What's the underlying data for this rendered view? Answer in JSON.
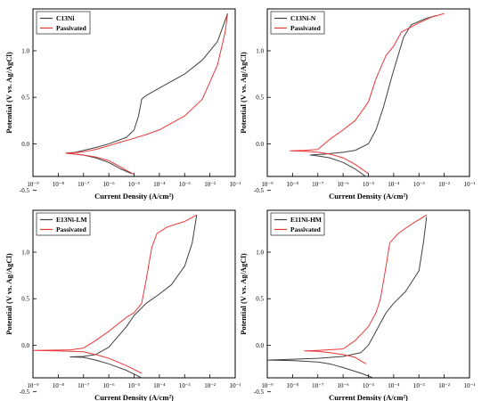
{
  "chart_data": [
    {
      "type": "line",
      "xlabel": "Current Density (A/cm²)",
      "ylabel": "Potential (V vs. Ag/AgCl)",
      "xscale": "log",
      "xlim": [
        1e-09,
        0.1
      ],
      "ylim": [
        -0.35,
        1.45
      ],
      "xticks": [
        "10⁻⁹",
        "10⁻⁸",
        "10⁻⁷",
        "10⁻⁶",
        "10⁻⁵",
        "10⁻⁴",
        "10⁻³",
        "10⁻²",
        "10⁻¹"
      ],
      "yticks": [
        "-0.5",
        "0.0",
        "0.5",
        "1.0"
      ],
      "legend": "top-left",
      "series": [
        {
          "name": "C13Ni",
          "color": "#404040",
          "points": [
            [
              8e-06,
              -0.32
            ],
            [
              3e-06,
              -0.27
            ],
            [
              1e-06,
              -0.2
            ],
            [
              3e-07,
              -0.15
            ],
            [
              1e-07,
              -0.12
            ],
            [
              3e-08,
              -0.105
            ],
            [
              2e-08,
              -0.1
            ],
            [
              5e-08,
              -0.09
            ],
            [
              1e-07,
              -0.07
            ],
            [
              3e-07,
              -0.04
            ],
            [
              1e-06,
              0.0
            ],
            [
              5e-06,
              0.07
            ],
            [
              1e-05,
              0.15
            ],
            [
              1.5e-05,
              0.3
            ],
            [
              2e-05,
              0.48
            ],
            [
              3e-05,
              0.52
            ],
            [
              0.0001,
              0.6
            ],
            [
              0.001,
              0.75
            ],
            [
              0.005,
              0.9
            ],
            [
              0.02,
              1.1
            ],
            [
              0.05,
              1.4
            ]
          ]
        },
        {
          "name": "Passivated",
          "color": "#e8383a",
          "points": [
            [
              1e-05,
              -0.33
            ],
            [
              3e-06,
              -0.25
            ],
            [
              1e-06,
              -0.18
            ],
            [
              3e-07,
              -0.14
            ],
            [
              1e-07,
              -0.12
            ],
            [
              3e-08,
              -0.105
            ],
            [
              2e-08,
              -0.1
            ],
            [
              5e-08,
              -0.095
            ],
            [
              1e-07,
              -0.085
            ],
            [
              3e-07,
              -0.06
            ],
            [
              1e-06,
              -0.02
            ],
            [
              3e-06,
              0.02
            ],
            [
              1e-05,
              0.06
            ],
            [
              3e-05,
              0.1
            ],
            [
              0.0001,
              0.15
            ],
            [
              0.001,
              0.3
            ],
            [
              0.005,
              0.48
            ],
            [
              0.02,
              0.85
            ],
            [
              0.04,
              1.2
            ],
            [
              0.05,
              1.4
            ]
          ]
        }
      ]
    },
    {
      "type": "line",
      "xlabel": "Current Density (A/cm²)",
      "ylabel": "Potential (V vs. Ag/AgCl)",
      "xscale": "log",
      "xlim": [
        1e-09,
        0.1
      ],
      "ylim": [
        -0.35,
        1.45
      ],
      "xticks": [
        "10⁻⁹",
        "10⁻⁸",
        "10⁻⁷",
        "10⁻⁶",
        "10⁻⁵",
        "10⁻⁴",
        "10⁻³",
        "10⁻²",
        "10⁻¹"
      ],
      "yticks": [
        "-0.5",
        "0.0",
        "0.5",
        "1.0"
      ],
      "legend": "top-left",
      "series": [
        {
          "name": "C13Ni-N",
          "color": "#404040",
          "points": [
            [
              1e-05,
              -0.37
            ],
            [
              3e-06,
              -0.27
            ],
            [
              1e-06,
              -0.2
            ],
            [
              3e-07,
              -0.15
            ],
            [
              1e-07,
              -0.13
            ],
            [
              5e-08,
              -0.12
            ],
            [
              2e-07,
              -0.11
            ],
            [
              1e-06,
              -0.09
            ],
            [
              3e-06,
              -0.07
            ],
            [
              1e-05,
              0.0
            ],
            [
              2e-05,
              0.15
            ],
            [
              4e-05,
              0.4
            ],
            [
              8e-05,
              0.7
            ],
            [
              0.00015,
              0.95
            ],
            [
              0.00025,
              1.15
            ],
            [
              0.0005,
              1.28
            ],
            [
              0.002,
              1.35
            ],
            [
              0.005,
              1.38
            ]
          ]
        },
        {
          "name": "Passivated",
          "color": "#e8383a",
          "points": [
            [
              1e-05,
              -0.32
            ],
            [
              3e-06,
              -0.22
            ],
            [
              1e-06,
              -0.15
            ],
            [
              3e-07,
              -0.11
            ],
            [
              1e-07,
              -0.09
            ],
            [
              3e-08,
              -0.08
            ],
            [
              8e-09,
              -0.075
            ],
            [
              3e-08,
              -0.07
            ],
            [
              1e-07,
              -0.06
            ],
            [
              3e-07,
              0.05
            ],
            [
              1e-06,
              0.15
            ],
            [
              3e-06,
              0.25
            ],
            [
              1e-05,
              0.45
            ],
            [
              2e-05,
              0.7
            ],
            [
              5e-05,
              0.95
            ],
            [
              0.0001,
              1.05
            ],
            [
              0.0002,
              1.2
            ],
            [
              0.001,
              1.3
            ],
            [
              0.003,
              1.36
            ],
            [
              0.01,
              1.4
            ]
          ]
        }
      ]
    },
    {
      "type": "line",
      "xlabel": "Current Density (A/cm²)",
      "ylabel": "Potential (V vs. Ag/AgCl)",
      "xscale": "log",
      "xlim": [
        1e-09,
        0.1
      ],
      "ylim": [
        -0.35,
        1.45
      ],
      "xticks": [
        "10⁻⁹",
        "10⁻⁸",
        "10⁻⁷",
        "10⁻⁶",
        "10⁻⁵",
        "10⁻⁴",
        "10⁻³",
        "10⁻²",
        "10⁻¹"
      ],
      "yticks": [
        "-0.5",
        "0.0",
        "0.5",
        "1.0"
      ],
      "legend": "top-left",
      "series": [
        {
          "name": "E13Ni-LM",
          "color": "#404040",
          "points": [
            [
              2e-05,
              -0.35
            ],
            [
              5e-06,
              -0.27
            ],
            [
              1e-06,
              -0.2
            ],
            [
              3e-07,
              -0.16
            ],
            [
              1e-07,
              -0.13
            ],
            [
              3e-08,
              -0.125
            ],
            [
              1e-07,
              -0.12
            ],
            [
              3e-07,
              -0.1
            ],
            [
              1e-06,
              -0.02
            ],
            [
              5e-06,
              0.2
            ],
            [
              1e-05,
              0.32
            ],
            [
              3e-05,
              0.45
            ],
            [
              0.0001,
              0.55
            ],
            [
              0.0003,
              0.65
            ],
            [
              0.001,
              0.85
            ],
            [
              0.002,
              1.1
            ],
            [
              0.003,
              1.4
            ]
          ]
        },
        {
          "name": "Passivated",
          "color": "#e8383a",
          "points": [
            [
              2e-05,
              -0.3
            ],
            [
              5e-06,
              -0.22
            ],
            [
              1e-06,
              -0.14
            ],
            [
              3e-07,
              -0.1
            ],
            [
              1e-07,
              -0.07
            ],
            [
              1e-08,
              -0.06
            ],
            [
              1e-09,
              -0.055
            ],
            [
              3e-08,
              -0.05
            ],
            [
              1e-07,
              -0.03
            ],
            [
              3e-07,
              0.05
            ],
            [
              1e-06,
              0.15
            ],
            [
              5e-06,
              0.3
            ],
            [
              1e-05,
              0.35
            ],
            [
              2e-05,
              0.45
            ],
            [
              3e-05,
              0.7
            ],
            [
              5e-05,
              1.05
            ],
            [
              8e-05,
              1.2
            ],
            [
              0.0002,
              1.27
            ],
            [
              0.001,
              1.33
            ],
            [
              0.003,
              1.4
            ]
          ]
        }
      ]
    },
    {
      "type": "line",
      "xlabel": "Current Density (A/cm²)",
      "ylabel": "Potential (V vs. Ag/AgCl)",
      "xscale": "log",
      "xlim": [
        1e-09,
        0.1
      ],
      "ylim": [
        -0.35,
        1.45
      ],
      "xticks": [
        "10⁻⁹",
        "10⁻⁸",
        "10⁻⁷",
        "10⁻⁶",
        "10⁻⁵",
        "10⁻⁴",
        "10⁻³",
        "10⁻²",
        "10⁻¹"
      ],
      "yticks": [
        "-0.5",
        "0.0",
        "0.5",
        "1.0"
      ],
      "legend": "top-left",
      "series": [
        {
          "name": "E11Ni-HM",
          "color": "#404040",
          "points": [
            [
              3e-05,
              -0.38
            ],
            [
              5e-06,
              -0.3
            ],
            [
              1e-06,
              -0.24
            ],
            [
              3e-07,
              -0.2
            ],
            [
              1e-07,
              -0.18
            ],
            [
              1e-08,
              -0.165
            ],
            [
              1e-09,
              -0.16
            ],
            [
              1e-08,
              -0.15
            ],
            [
              1e-07,
              -0.14
            ],
            [
              1e-06,
              -0.12
            ],
            [
              5e-06,
              -0.08
            ],
            [
              1e-05,
              0.0
            ],
            [
              2e-05,
              0.15
            ],
            [
              5e-05,
              0.35
            ],
            [
              0.0001,
              0.45
            ],
            [
              0.0003,
              0.58
            ],
            [
              0.001,
              0.8
            ],
            [
              0.0015,
              1.1
            ],
            [
              0.002,
              1.38
            ]
          ]
        },
        {
          "name": "Passivated",
          "color": "#e8383a",
          "points": [
            [
              8e-06,
              -0.2
            ],
            [
              3e-06,
              -0.13
            ],
            [
              1e-06,
              -0.1
            ],
            [
              3e-07,
              -0.08
            ],
            [
              1e-07,
              -0.065
            ],
            [
              3e-08,
              -0.06
            ],
            [
              1e-07,
              -0.055
            ],
            [
              1e-06,
              -0.04
            ],
            [
              3e-06,
              0.05
            ],
            [
              1e-05,
              0.2
            ],
            [
              2e-05,
              0.35
            ],
            [
              3e-05,
              0.5
            ],
            [
              5e-05,
              0.85
            ],
            [
              7e-05,
              1.1
            ],
            [
              0.00015,
              1.2
            ],
            [
              0.0005,
              1.3
            ],
            [
              0.002,
              1.4
            ]
          ]
        }
      ]
    }
  ]
}
